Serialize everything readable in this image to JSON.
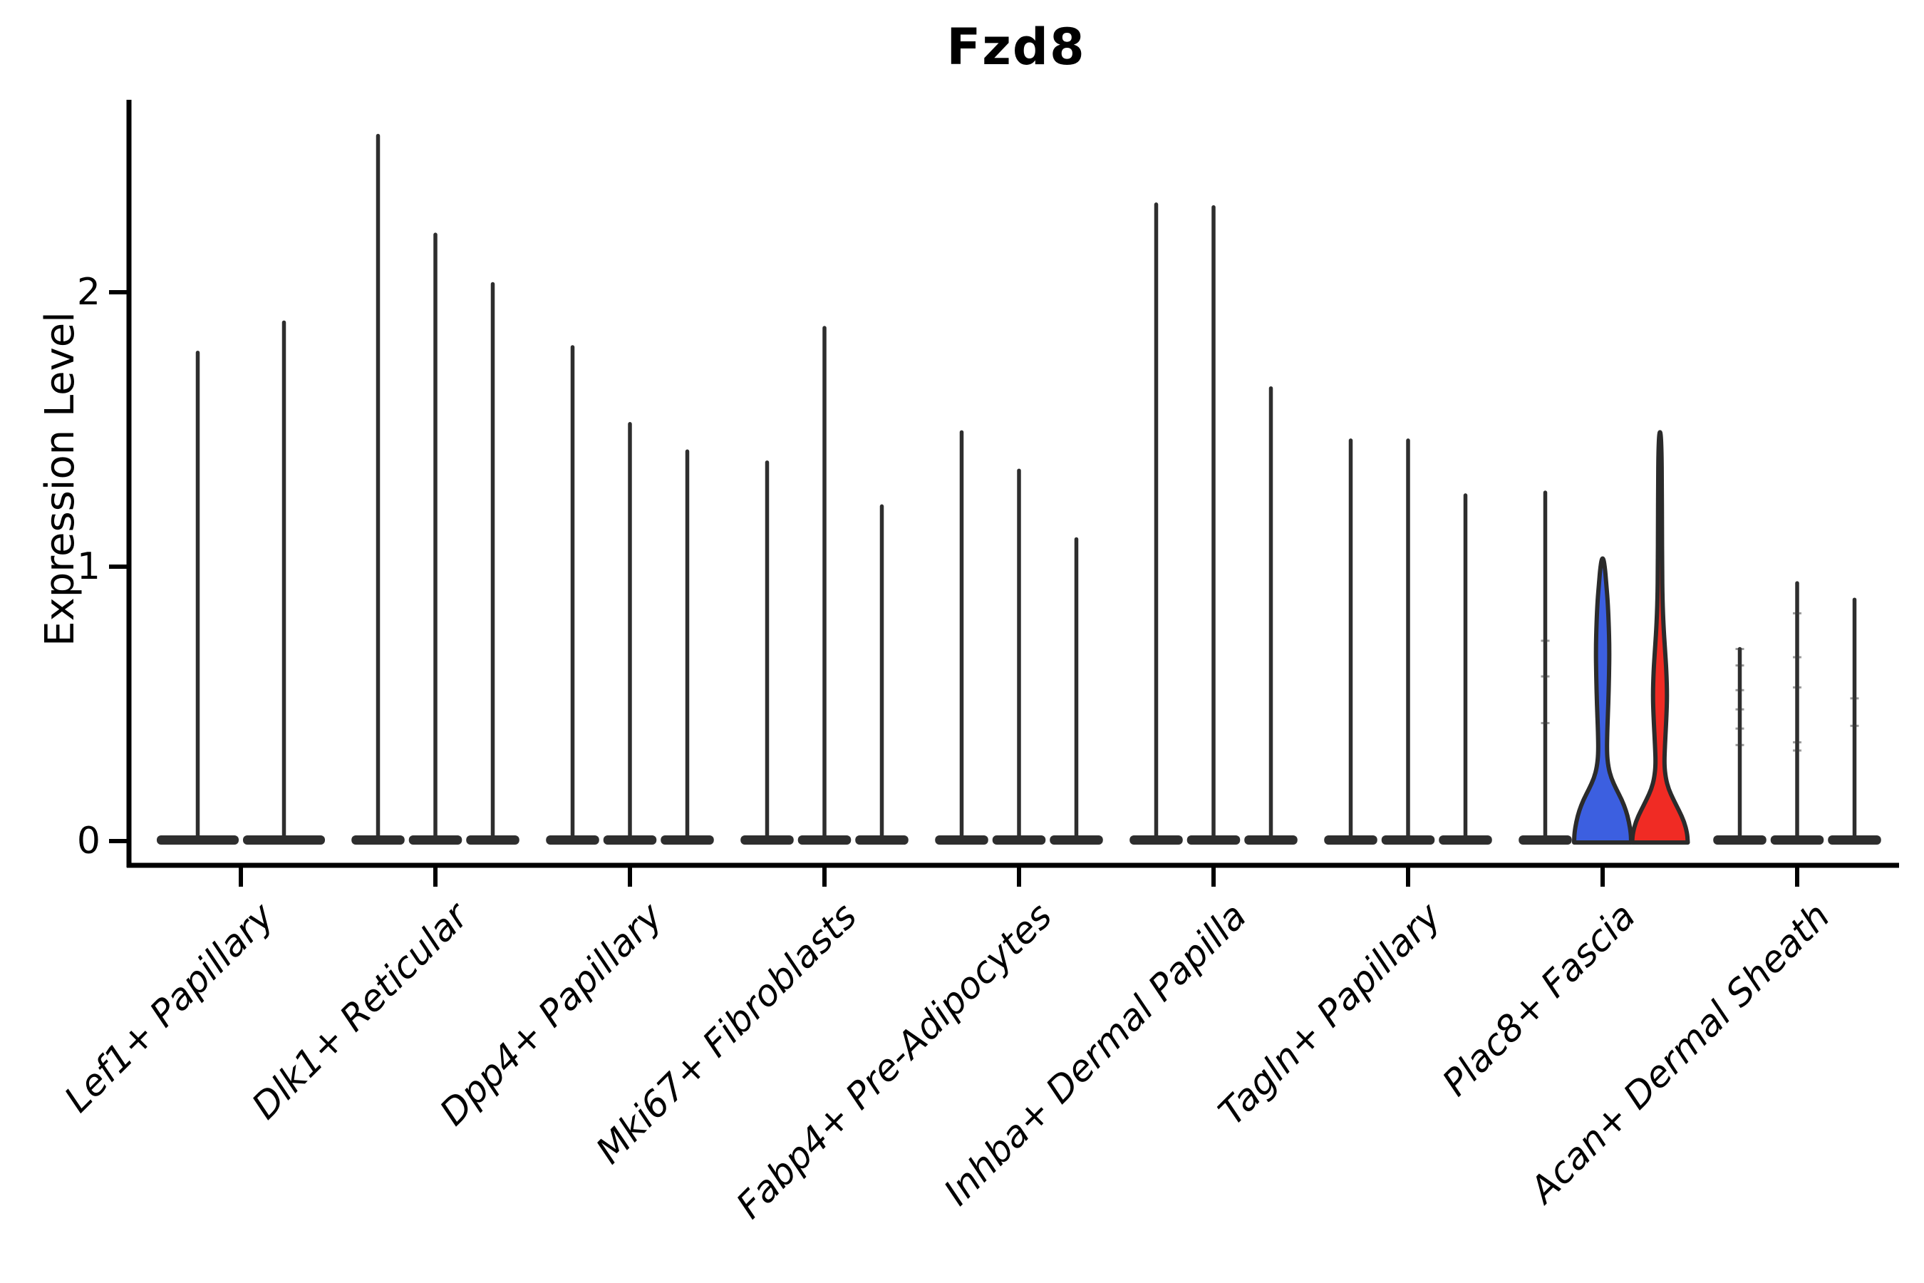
{
  "title": "Fzd8",
  "y_axis": {
    "label": "Expression Level",
    "ticks": [
      0,
      1,
      2
    ]
  },
  "categories": [
    "Lef1+ Papillary",
    "Dlk1+ Reticular",
    "Dpp4+ Papillary",
    "Mki67+ Fibroblasts",
    "Fabp4+ Pre-Adipocytes",
    "Inhba+ Dermal Papilla",
    "Tagln+ Papillary",
    "Plac8+ Fascia",
    "Acan+ Dermal Sheath"
  ],
  "colors": {
    "axis": "#000000",
    "violin_outline": "#2B2B2B",
    "thin_violin": "#2E2E2E",
    "highlight_blue": "#3C5FE0",
    "highlight_red": "#F02B24",
    "point_dash": "#3A3A3A"
  },
  "chart_data": {
    "type": "violin",
    "title": "Fzd8",
    "xlabel": "",
    "ylabel": "Expression Level",
    "ylim": [
      -0.11,
      2.75
    ],
    "yticks": [
      0,
      1,
      2
    ],
    "grid": false,
    "legend": "none",
    "categories": [
      "Lef1+ Papillary",
      "Dlk1+ Reticular",
      "Dpp4+ Papillary",
      "Mki67+ Fibroblasts",
      "Fabp4+ Pre-Adipocytes",
      "Inhba+ Dermal Papilla",
      "Tagln+ Papillary",
      "Plac8+ Fascia",
      "Acan+ Dermal Sheath"
    ],
    "description": "Violin plot of Fzd8 expression; almost all violins collapse to a flat base at 0 with a thin spike to the max expressed cell. The middle (blue) and right (red) violins of Plac8+ Fascia are highlighted with visible density bulges near 0.",
    "groups": [
      {
        "category": "Lef1+ Papillary",
        "violins": [
          {
            "style": "thin",
            "max": 1.78
          },
          {
            "style": "thin",
            "max": 1.89
          }
        ]
      },
      {
        "category": "Dlk1+ Reticular",
        "violins": [
          {
            "style": "thin",
            "max": 2.57
          },
          {
            "style": "thin",
            "max": 2.21
          },
          {
            "style": "thin",
            "max": 2.03
          }
        ]
      },
      {
        "category": "Dpp4+ Papillary",
        "violins": [
          {
            "style": "thin",
            "max": 1.8
          },
          {
            "style": "thin",
            "max": 1.52
          },
          {
            "style": "thin",
            "max": 1.42
          }
        ]
      },
      {
        "category": "Mki67+ Fibroblasts",
        "violins": [
          {
            "style": "thin",
            "max": 1.38
          },
          {
            "style": "thin",
            "max": 1.87
          },
          {
            "style": "thin",
            "max": 1.22
          }
        ]
      },
      {
        "category": "Fabp4+ Pre-Adipocytes",
        "violins": [
          {
            "style": "thin",
            "max": 1.49
          },
          {
            "style": "thin",
            "max": 1.35
          },
          {
            "style": "thin",
            "max": 1.1
          }
        ]
      },
      {
        "category": "Inhba+ Dermal Papilla",
        "violins": [
          {
            "style": "thin",
            "max": 2.32
          },
          {
            "style": "thin",
            "max": 2.31
          },
          {
            "style": "thin",
            "max": 1.65
          }
        ]
      },
      {
        "category": "Tagln+ Papillary",
        "violins": [
          {
            "style": "thin",
            "max": 1.46
          },
          {
            "style": "thin",
            "max": 1.46
          },
          {
            "style": "thin",
            "max": 1.26
          }
        ]
      },
      {
        "category": "Plac8+ Fascia",
        "violins": [
          {
            "style": "thin",
            "max": 1.27,
            "points": [
              0.73,
              0.6,
              0.43
            ]
          },
          {
            "style": "shaped",
            "color": "#3C5FE0",
            "max": 1.03,
            "profile": [
              [
                0.0,
                40
              ],
              [
                0.03,
                39.5
              ],
              [
                0.07,
                37
              ],
              [
                0.11,
                33
              ],
              [
                0.15,
                27
              ],
              [
                0.19,
                19
              ],
              [
                0.23,
                12
              ],
              [
                0.27,
                8
              ],
              [
                0.32,
                6
              ],
              [
                0.4,
                6.5
              ],
              [
                0.5,
                8
              ],
              [
                0.6,
                9
              ],
              [
                0.7,
                9.5
              ],
              [
                0.8,
                8.5
              ],
              [
                0.88,
                7
              ],
              [
                0.94,
                5
              ],
              [
                0.99,
                3.5
              ],
              [
                1.03,
                1.2
              ]
            ]
          },
          {
            "style": "shaped",
            "color": "#F02B24",
            "max": 1.49,
            "profile": [
              [
                0.0,
                39
              ],
              [
                0.03,
                38
              ],
              [
                0.07,
                34
              ],
              [
                0.11,
                27
              ],
              [
                0.15,
                19
              ],
              [
                0.19,
                12
              ],
              [
                0.23,
                8
              ],
              [
                0.28,
                6
              ],
              [
                0.35,
                7
              ],
              [
                0.45,
                9
              ],
              [
                0.53,
                10
              ],
              [
                0.62,
                9
              ],
              [
                0.7,
                7
              ],
              [
                0.78,
                5
              ],
              [
                0.88,
                3.5
              ],
              [
                1.0,
                3
              ],
              [
                1.15,
                2.8
              ],
              [
                1.3,
                2.6
              ],
              [
                1.42,
                2.2
              ],
              [
                1.49,
                1
              ]
            ]
          }
        ]
      },
      {
        "category": "Acan+ Dermal Sheath",
        "violins": [
          {
            "style": "thin",
            "max": 0.7,
            "points": [
              0.7,
              0.64,
              0.55,
              0.48,
              0.41,
              0.35
            ]
          },
          {
            "style": "thin",
            "max": 0.94,
            "points": [
              0.83,
              0.67,
              0.56,
              0.36,
              0.33
            ]
          },
          {
            "style": "thin",
            "max": 0.88,
            "points": [
              0.52,
              0.42
            ]
          }
        ]
      }
    ]
  }
}
